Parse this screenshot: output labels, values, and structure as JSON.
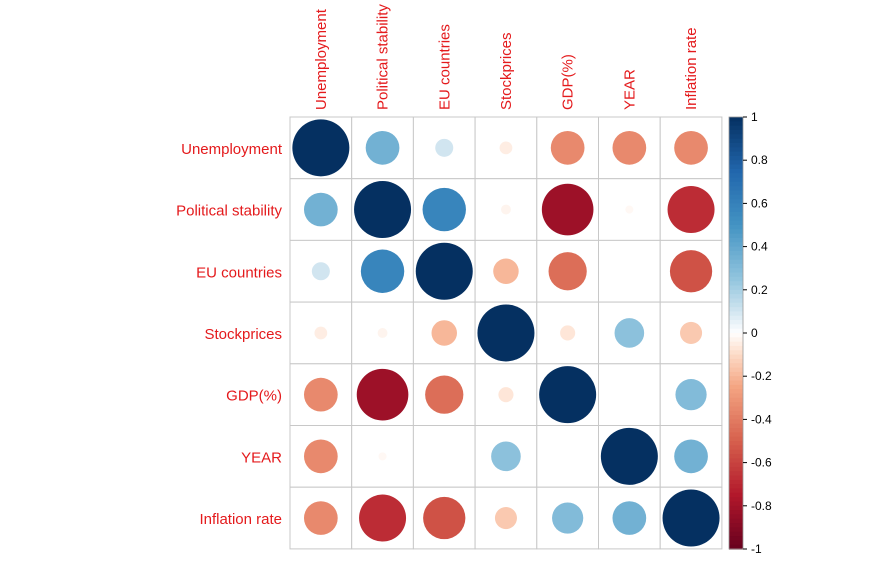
{
  "chart_data": {
    "type": "heatmap",
    "title": "",
    "variables": [
      "Unemployment",
      "Political stability",
      "EU countries",
      "Stockprices",
      "GDP(%)",
      "YEAR",
      "Inflation rate"
    ],
    "matrix": [
      [
        1.0,
        0.35,
        0.1,
        -0.05,
        -0.35,
        -0.35,
        -0.35
      ],
      [
        0.35,
        1.0,
        0.58,
        -0.03,
        -0.82,
        -0.02,
        -0.68
      ],
      [
        0.1,
        0.58,
        1.0,
        -0.2,
        -0.45,
        0.0,
        -0.55
      ],
      [
        -0.05,
        -0.03,
        -0.2,
        1.0,
        -0.07,
        0.27,
        -0.15
      ],
      [
        -0.35,
        -0.82,
        -0.45,
        -0.07,
        1.0,
        0.0,
        0.3
      ],
      [
        -0.35,
        -0.02,
        0.0,
        0.27,
        0.0,
        1.0,
        0.35
      ],
      [
        -0.35,
        -0.68,
        -0.55,
        -0.15,
        0.3,
        0.35,
        1.0
      ]
    ],
    "colorbar": {
      "range": [
        -1,
        1
      ],
      "ticks": [
        "1",
        "0.8",
        "0.6",
        "0.4",
        "0.2",
        "0",
        "-0.2",
        "-0.4",
        "-0.6",
        "-0.8",
        "-1"
      ]
    },
    "label_color": "#E41A1C",
    "positive_color": "#053061",
    "negative_color": "#67001F",
    "neutral_color": "#FFFFFF",
    "legend_position": "right"
  }
}
